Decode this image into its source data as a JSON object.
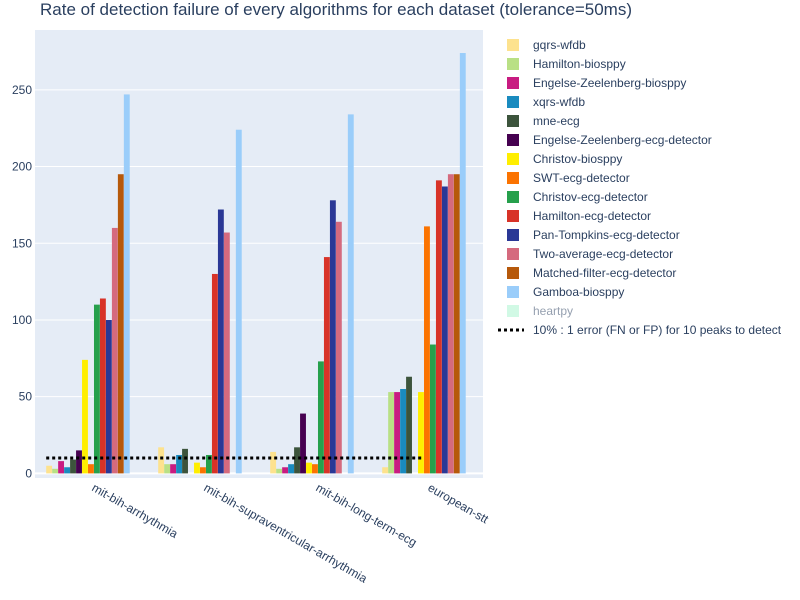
{
  "chart_data": {
    "type": "bar",
    "title": "Rate of detection failure of every algorithms for each dataset (tolerance=50ms)",
    "categories": [
      "mit-bih-arrhythmia",
      "mit-bih-supraventricular-arrhythmia",
      "mit-bih-long-term-ecg",
      "european-stt"
    ],
    "ylim": [
      -3,
      289
    ],
    "yticks": [
      0,
      50,
      100,
      150,
      200,
      250
    ],
    "grid": true,
    "legend_position": "right",
    "series": [
      {
        "name": "gqrs-wfdb",
        "color": "#fde28e",
        "values": [
          5,
          17,
          14,
          4
        ]
      },
      {
        "name": "Hamilton-biosppy",
        "color": "#b9e085",
        "values": [
          3,
          6,
          3,
          53
        ]
      },
      {
        "name": "Engelse-Zeelenberg-biosppy",
        "color": "#c81c81",
        "values": [
          8,
          6,
          4,
          53
        ]
      },
      {
        "name": "xqrs-wfdb",
        "color": "#1a8bbf",
        "values": [
          4,
          12,
          6,
          55
        ]
      },
      {
        "name": "mne-ecg",
        "color": "#3c543c",
        "values": [
          9,
          16,
          17,
          63
        ]
      },
      {
        "name": "Engelse-Zeelenberg-ecg-detector",
        "color": "#460150",
        "values": [
          15,
          null,
          39,
          null
        ]
      },
      {
        "name": "Christov-biosppy",
        "color": "#ffee00",
        "values": [
          74,
          7,
          7,
          53
        ]
      },
      {
        "name": "SWT-ecg-detector",
        "color": "#fb7300",
        "values": [
          6,
          4,
          6,
          161
        ]
      },
      {
        "name": "Christov-ecg-detector",
        "color": "#26a04c",
        "values": [
          110,
          12,
          73,
          84
        ]
      },
      {
        "name": "Hamilton-ecg-detector",
        "color": "#d83328",
        "values": [
          114,
          130,
          141,
          191
        ]
      },
      {
        "name": "Pan-Tompkins-ecg-detector",
        "color": "#2a3896",
        "values": [
          100,
          172,
          178,
          187
        ]
      },
      {
        "name": "Two-average-ecg-detector",
        "color": "#d56a7e",
        "values": [
          160,
          157,
          164,
          195
        ]
      },
      {
        "name": "Matched-filter-ecg-detector",
        "color": "#b6590b",
        "values": [
          195,
          null,
          null,
          195
        ]
      },
      {
        "name": "Gamboa-biosppy",
        "color": "#9acdfa",
        "values": [
          247,
          224,
          234,
          274
        ]
      },
      {
        "name": "heartpy",
        "color": "#a4f4cc",
        "values": [
          null,
          null,
          null,
          null
        ],
        "legend_dimmed": true
      }
    ],
    "reference_line": {
      "label": "10% : 1 error (FN or FP) for 10 peaks to detect",
      "value": 10,
      "color": "#000000"
    }
  }
}
